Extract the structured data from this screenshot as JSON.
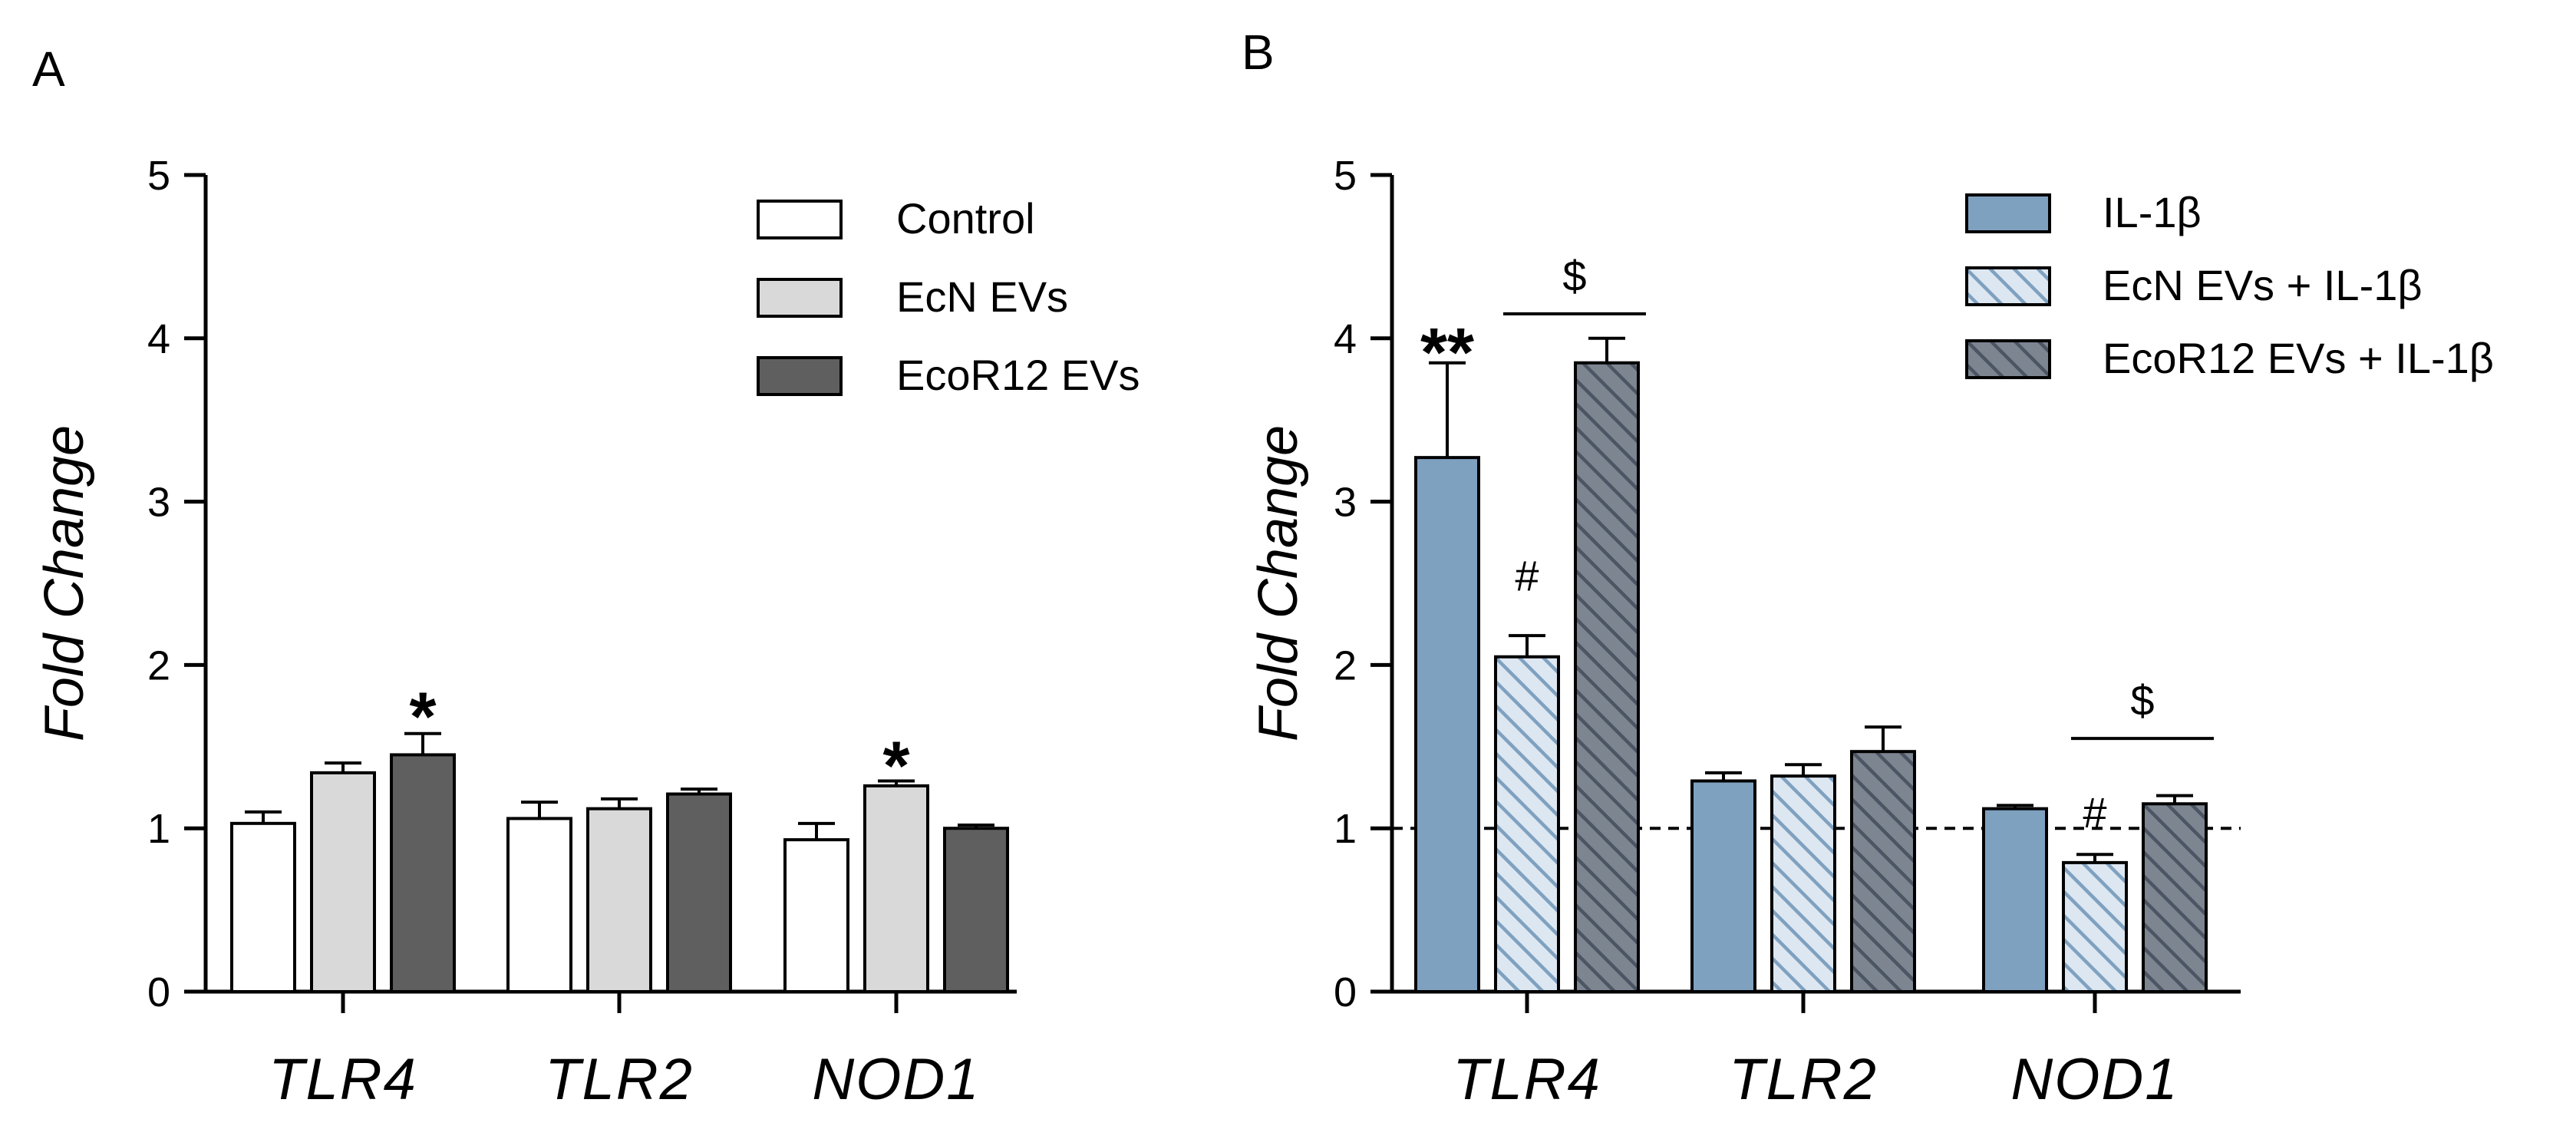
{
  "colors": {
    "control": "#ffffff",
    "ecn": "#d9d9d9",
    "ecor12": "#5f5f5f",
    "il1b": "#7fa1c0",
    "ecn_il1b_bg": "#dde7f1",
    "ecn_il1b_hatch": "#7fa1c0",
    "ecor_il1b_bg": "#7d8591",
    "ecor_il1b_hatch": "#4b5563",
    "axis": "#000000"
  },
  "chart_data": [
    {
      "panel": "A",
      "type": "bar",
      "ylabel": "Fold Change",
      "ylim": [
        0,
        5
      ],
      "yticks": [
        "0",
        "1",
        "2",
        "3",
        "4",
        "5"
      ],
      "categories": [
        "TLR4",
        "TLR2",
        "NOD1"
      ],
      "legend_position": "top-right",
      "series": [
        {
          "name": "Control",
          "style": "control",
          "values": [
            1.03,
            1.06,
            0.93
          ],
          "errors": [
            0.07,
            0.1,
            0.1
          ]
        },
        {
          "name": "EcN EVs",
          "style": "ecn",
          "values": [
            1.34,
            1.12,
            1.26
          ],
          "errors": [
            0.06,
            0.06,
            0.03
          ]
        },
        {
          "name": "EcoR12 EVs",
          "style": "ecor12",
          "values": [
            1.45,
            1.21,
            1.0
          ],
          "errors": [
            0.13,
            0.03,
            0.02
          ]
        }
      ],
      "annotations": [
        {
          "text": "*",
          "category": 0,
          "series": 2,
          "y": 1.82,
          "kind": "sig"
        },
        {
          "text": "*",
          "category": 2,
          "series": 1,
          "y": 1.52,
          "kind": "sig"
        }
      ],
      "brackets": [],
      "reference_line": null
    },
    {
      "panel": "B",
      "type": "bar",
      "ylabel": "Fold Change",
      "ylim": [
        0,
        5
      ],
      "yticks": [
        "0",
        "1",
        "2",
        "3",
        "4",
        "5"
      ],
      "categories": [
        "TLR4",
        "TLR2",
        "NOD1"
      ],
      "legend_position": "top-right",
      "series": [
        {
          "name": "IL-1β",
          "style": "il1b",
          "values": [
            3.27,
            1.29,
            1.12
          ],
          "errors": [
            0.58,
            0.05,
            0.02
          ]
        },
        {
          "name": "EcN EVs + IL-1β",
          "style": "ecn_il1b",
          "values": [
            2.05,
            1.32,
            0.79
          ],
          "errors": [
            0.13,
            0.07,
            0.05
          ]
        },
        {
          "name": "EcoR12 EVs + IL-1β",
          "style": "ecor_il1b",
          "values": [
            3.85,
            1.47,
            1.15
          ],
          "errors": [
            0.15,
            0.15,
            0.05
          ]
        }
      ],
      "annotations": [
        {
          "text": "**",
          "category": 0,
          "series": 0,
          "y": 4.05,
          "kind": "sig"
        },
        {
          "text": "#",
          "category": 0,
          "series": 1,
          "y": 2.55,
          "kind": "sig-sm"
        },
        {
          "text": "#",
          "category": 2,
          "series": 1,
          "y": 1.1,
          "kind": "sig-sm"
        }
      ],
      "brackets": [
        {
          "text": "$",
          "from_category": 0,
          "from_series": 1,
          "to_category": 0,
          "to_series": 2,
          "y": 4.15
        },
        {
          "text": "$",
          "from_category": 2,
          "from_series": 1,
          "to_category": 2,
          "to_series": 2,
          "y": 1.55
        }
      ],
      "reference_line": 1.0
    }
  ],
  "panel_labels": [
    "A",
    "B"
  ]
}
